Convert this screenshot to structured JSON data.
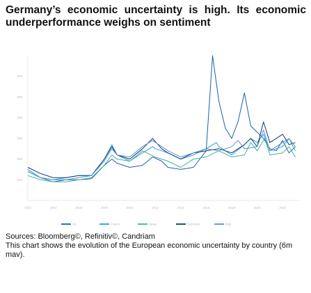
{
  "title": "Germany’s economic uncertainty is high. Its economic underperformance weighs on sentiment",
  "notes": {
    "sources": "Sources: Bloomberg©, Refinitiv©, Candriam",
    "description": "This chart shows the evolution of the European economic uncertainty by country (6m mav)."
  },
  "chart_data": {
    "type": "line",
    "grid": false,
    "ylim": [
      0,
      700
    ],
    "xlim": [
      2002,
      2023.3
    ],
    "yticks": [
      "100",
      "200",
      "300",
      "400",
      "500",
      "600"
    ],
    "yticks_values": [
      100,
      200,
      300,
      400,
      500,
      600
    ],
    "xticks": [
      "2002",
      "2004",
      "2006",
      "2008",
      "2010",
      "2012",
      "2014",
      "2016",
      "2018",
      "2020",
      "2022"
    ],
    "xticks_values": [
      2002,
      2004,
      2006,
      2008,
      2010,
      2012,
      2014,
      2016,
      2018,
      2020,
      2022
    ],
    "legend_position": "bottom",
    "series": [
      {
        "name": "UK",
        "color": "#1a5fb4",
        "x": [
          2002,
          2003,
          2004,
          2005,
          2006,
          2007,
          2008,
          2008.6,
          2009,
          2010,
          2011,
          2011.8,
          2012.5,
          2013,
          2014,
          2015,
          2016,
          2016.5,
          2017,
          2017.5,
          2018,
          2018.5,
          2019,
          2019.5,
          2020,
          2020.5,
          2021,
          2021.5,
          2022,
          2022.5,
          2023
        ],
        "y": [
          140,
          110,
          90,
          100,
          100,
          105,
          170,
          200,
          180,
          160,
          170,
          210,
          190,
          160,
          150,
          160,
          240,
          700,
          480,
          350,
          300,
          380,
          520,
          360,
          330,
          300,
          250,
          240,
          290,
          230,
          260
        ]
      },
      {
        "name": "France",
        "color": "#2b9fd8",
        "x": [
          2002,
          2003,
          2004,
          2005,
          2006,
          2007,
          2008,
          2008.6,
          2009,
          2010,
          2011,
          2011.8,
          2012,
          2013,
          2014,
          2015,
          2016,
          2016.8,
          2017,
          2018,
          2019,
          2019.5,
          2020,
          2020.5,
          2021,
          2022,
          2022.5,
          2023
        ],
        "y": [
          150,
          110,
          100,
          110,
          120,
          120,
          200,
          270,
          220,
          190,
          230,
          260,
          250,
          230,
          200,
          220,
          250,
          280,
          260,
          220,
          270,
          300,
          280,
          320,
          240,
          260,
          300,
          240
        ]
      },
      {
        "name": "Spain",
        "color": "#3bb4a0",
        "x": [
          2002,
          2003,
          2004,
          2005,
          2006,
          2007,
          2008,
          2008.6,
          2009,
          2010,
          2011,
          2012,
          2013,
          2014,
          2015,
          2016,
          2017,
          2018,
          2019,
          2019.5,
          2020,
          2020.6,
          2021,
          2022,
          2022.5,
          2023
        ],
        "y": [
          120,
          100,
          90,
          90,
          100,
          110,
          170,
          220,
          200,
          190,
          240,
          210,
          190,
          160,
          200,
          210,
          240,
          210,
          220,
          280,
          240,
          300,
          220,
          230,
          260,
          210
        ]
      },
      {
        "name": "Germany",
        "color": "#0d3a75",
        "x": [
          2002,
          2003,
          2004,
          2005,
          2006,
          2007,
          2008,
          2008.6,
          2009,
          2010,
          2011,
          2011.8,
          2012.5,
          2013,
          2014,
          2015,
          2016,
          2017,
          2018,
          2019,
          2019.5,
          2020,
          2020.5,
          2021,
          2022,
          2022.5,
          2023
        ],
        "y": [
          160,
          130,
          110,
          110,
          120,
          120,
          200,
          260,
          220,
          200,
          250,
          300,
          250,
          230,
          200,
          230,
          240,
          250,
          230,
          270,
          300,
          260,
          380,
          280,
          320,
          270,
          280
        ]
      },
      {
        "name": "Italy",
        "color": "#5b8fd0",
        "x": [
          2002,
          2003,
          2004,
          2005,
          2006,
          2007,
          2008,
          2008.6,
          2009,
          2010,
          2011,
          2011.8,
          2012.5,
          2013,
          2014,
          2015,
          2016,
          2017,
          2018,
          2018.5,
          2019,
          2020,
          2020.5,
          2021,
          2022,
          2022.5,
          2023
        ],
        "y": [
          140,
          110,
          100,
          100,
          110,
          120,
          190,
          250,
          220,
          210,
          260,
          290,
          260,
          240,
          210,
          230,
          250,
          240,
          260,
          290,
          250,
          260,
          340,
          240,
          280,
          300,
          260
        ]
      }
    ]
  }
}
